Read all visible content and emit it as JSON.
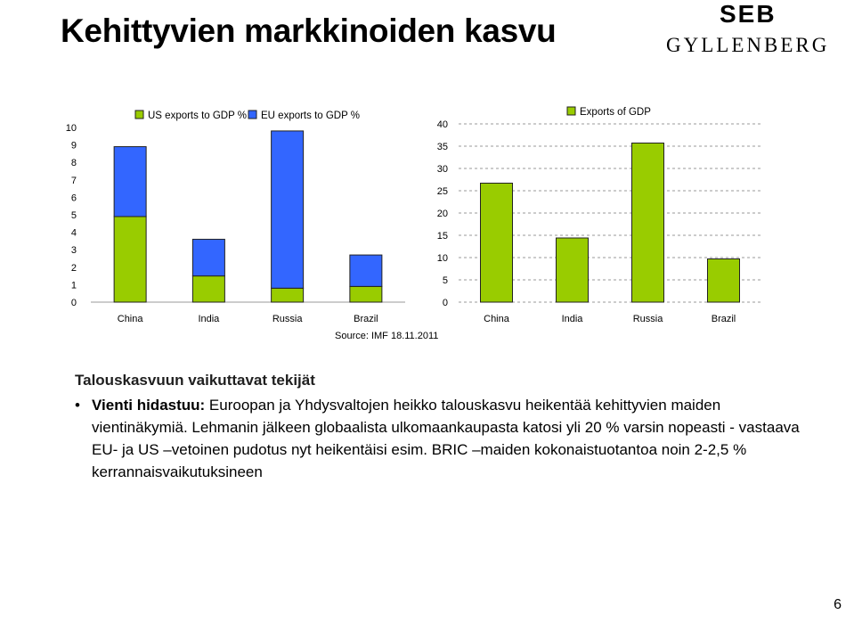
{
  "title": "Kehittyvien markkinoiden kasvu",
  "logo": {
    "line1": "SEB",
    "line2": "GYLLENBERG"
  },
  "source": "Source: IMF 18.11.2011",
  "chart_data": [
    {
      "type": "bar",
      "stacked": true,
      "categories": [
        "China",
        "India",
        "Russia",
        "Brazil"
      ],
      "series": [
        {
          "name": "US exports to GDP %",
          "color": "#99cc00",
          "values": [
            4.9,
            1.5,
            0.8,
            0.9
          ]
        },
        {
          "name": "EU exports to GDP %",
          "color": "#3366ff",
          "values": [
            4.0,
            2.1,
            9.0,
            1.8
          ]
        }
      ],
      "ylim": [
        0,
        10
      ],
      "yticks": [
        "0",
        "1",
        "2",
        "3",
        "4",
        "5",
        "6",
        "7",
        "8",
        "9",
        "10"
      ],
      "grid": false,
      "legend": "top"
    },
    {
      "type": "bar",
      "categories": [
        "China",
        "India",
        "Russia",
        "Brazil"
      ],
      "series": [
        {
          "name": "Exports of GDP",
          "color": "#99cc00",
          "values": [
            26.7,
            14.4,
            35.7,
            9.7
          ]
        }
      ],
      "ylim": [
        0,
        40
      ],
      "yticks": [
        "0",
        "5",
        "10",
        "15",
        "20",
        "25",
        "30",
        "35",
        "40"
      ],
      "grid": true,
      "legend": "top"
    }
  ],
  "text": {
    "heading": "Talouskasvuun vaikuttavat tekijät",
    "bullet_symbol": "•",
    "bullet_lead": "Vienti hidastuu:",
    "bullet_body": " Euroopan ja Yhdysvaltojen heikko talouskasvu heikentää kehittyvien maiden vientinäkymiä. Lehmanin jälkeen globaalista ulkomaankaupasta katosi yli 20 % varsin nopeasti - vastaava EU- ja US –vetoinen pudotus nyt heikentäisi esim. BRIC –maiden kokonaistuotantoa noin 2-2,5 % kerrannaisvaikutuksineen"
  },
  "page_number": "6"
}
